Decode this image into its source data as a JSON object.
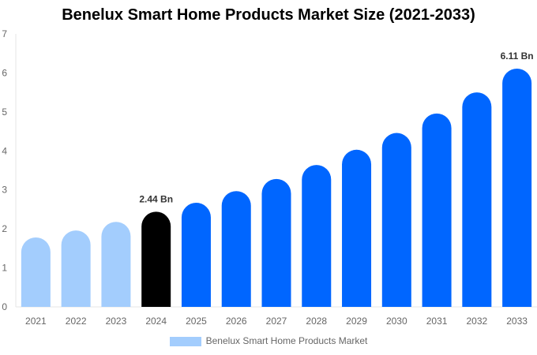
{
  "chart_data": {
    "type": "bar",
    "title": "Benelux Smart Home Products Market Size (2021-2033)",
    "categories": [
      "2021",
      "2022",
      "2023",
      "2024",
      "2025",
      "2026",
      "2027",
      "2028",
      "2029",
      "2030",
      "2031",
      "2032",
      "2033"
    ],
    "series": [
      {
        "name": "Benelux Smart Home Products Market",
        "values": [
          1.78,
          1.96,
          2.18,
          2.44,
          2.67,
          2.97,
          3.28,
          3.64,
          4.03,
          4.46,
          4.96,
          5.5,
          6.11
        ]
      }
    ],
    "bar_colors": [
      "#a3cdfd",
      "#a3cdfd",
      "#a3cdfd",
      "#000000",
      "#0066ff",
      "#0066ff",
      "#0066ff",
      "#0066ff",
      "#0066ff",
      "#0066ff",
      "#0066ff",
      "#0066ff",
      "#0066ff"
    ],
    "data_labels": {
      "3": "2.44 Bn",
      "12": "6.11 Bn"
    },
    "ylim": [
      0,
      7
    ],
    "yticks": [
      0,
      1,
      2,
      3,
      4,
      5,
      6,
      7
    ],
    "xlabel": "",
    "ylabel": "",
    "grid": false,
    "legend_position": "bottom",
    "legend_color": "#a3cdfd"
  }
}
